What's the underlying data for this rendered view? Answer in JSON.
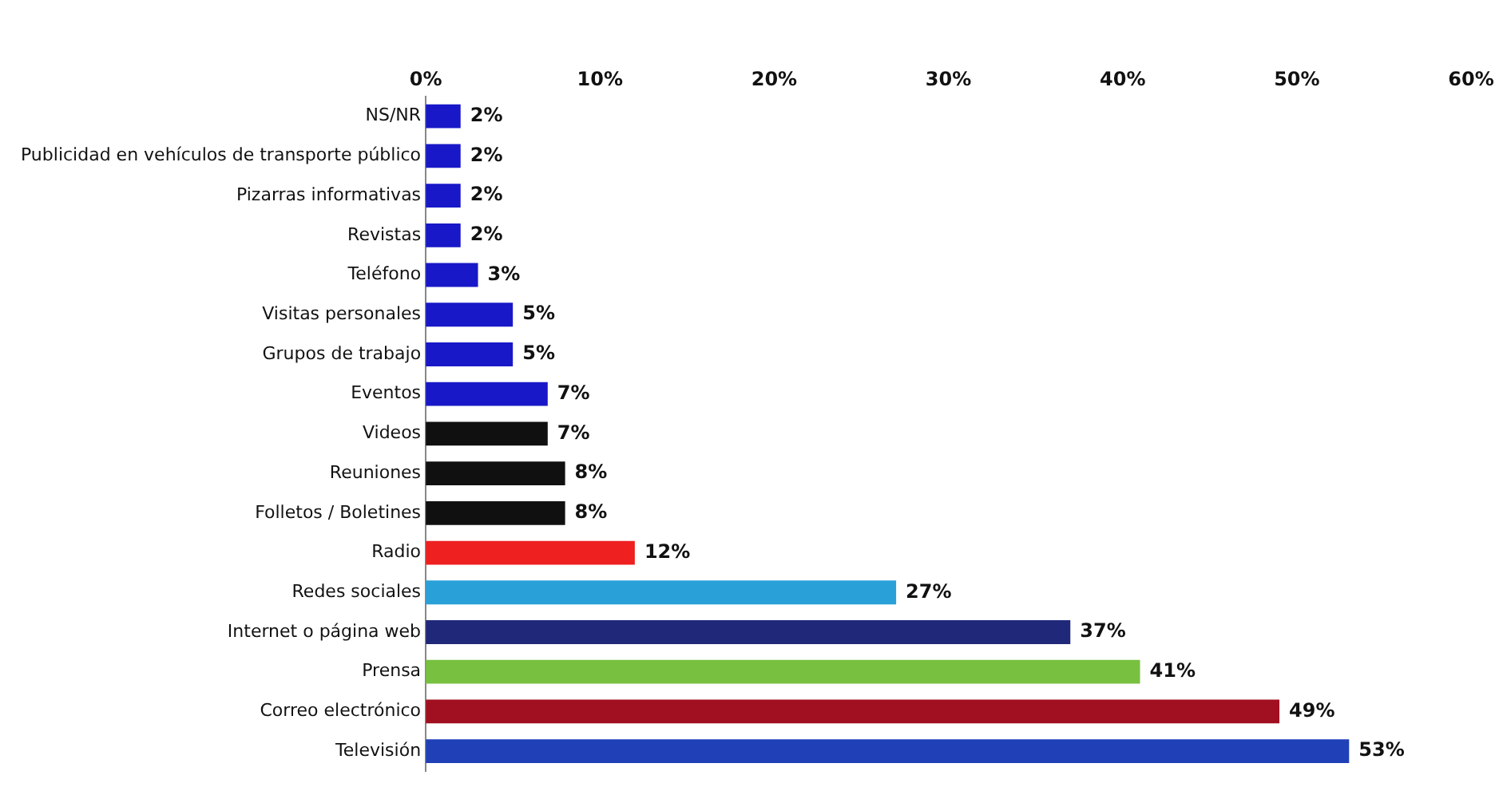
{
  "chart_data": {
    "type": "bar",
    "orientation": "horizontal",
    "categories": [
      "NS/NR",
      "Publicidad en vehículos de transporte público",
      "Pizarras informativas",
      "Revistas",
      "Teléfono",
      "Visitas personales",
      "Grupos de trabajo",
      "Eventos",
      "Videos",
      "Reuniones",
      "Folletos / Boletines",
      "Radio",
      "Redes sociales",
      "Internet o página web",
      "Prensa",
      "Correo electrónico",
      "Televisión"
    ],
    "values": [
      2,
      2,
      2,
      2,
      3,
      5,
      5,
      7,
      7,
      8,
      8,
      12,
      27,
      37,
      41,
      49,
      53
    ],
    "colors": [
      "#1818c8",
      "#1818c8",
      "#1818c8",
      "#1818c8",
      "#1818c8",
      "#1818c8",
      "#1818c8",
      "#1818c8",
      "#101010",
      "#101010",
      "#101010",
      "#ee2020",
      "#2aa0d8",
      "#20287a",
      "#78c040",
      "#a01020",
      "#2040b8"
    ],
    "value_labels": [
      "2%",
      "2%",
      "2%",
      "2%",
      "3%",
      "5%",
      "5%",
      "7%",
      "7%",
      "8%",
      "8%",
      "12%",
      "27%",
      "37%",
      "41%",
      "49%",
      "53%"
    ],
    "xlim": [
      0,
      60
    ],
    "xticks": [
      {
        "value": 0,
        "label": "0%"
      },
      {
        "value": 10,
        "label": "10%"
      },
      {
        "value": 20,
        "label": "20%"
      },
      {
        "value": 30,
        "label": "30%"
      },
      {
        "value": 40,
        "label": "40%"
      },
      {
        "value": 50,
        "label": "50%"
      },
      {
        "value": 60,
        "label": "60%"
      }
    ],
    "grid": false,
    "legend": false
  }
}
